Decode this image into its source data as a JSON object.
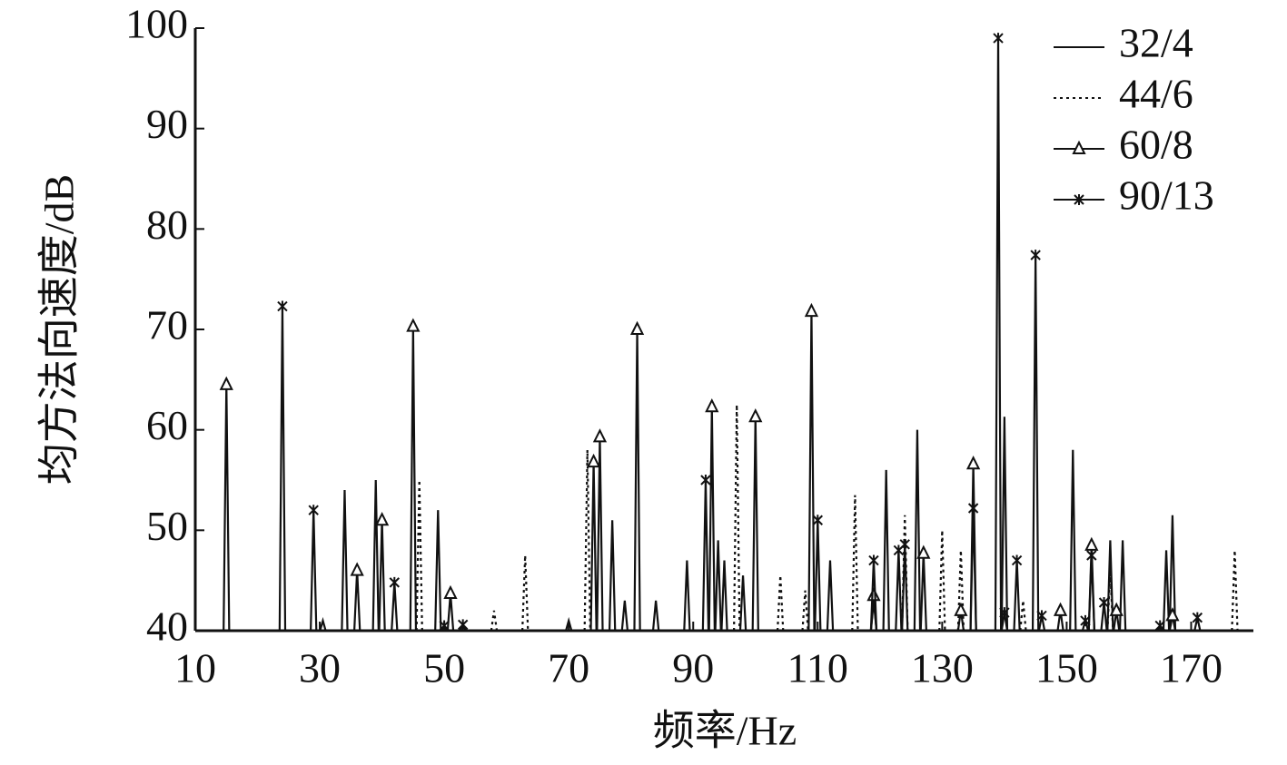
{
  "chart_data": {
    "type": "line",
    "x_label": "频率/Hz",
    "y_label": "均方法向速度/dB",
    "xlim": [
      10,
      180
    ],
    "ylim": [
      40,
      100
    ],
    "xticks": [
      10,
      30,
      50,
      70,
      90,
      110,
      130,
      150,
      170
    ],
    "yticks": [
      40,
      50,
      60,
      70,
      80,
      90,
      100
    ],
    "legend": "upper-right",
    "series": [
      {
        "name": "32/4",
        "color": "#111111",
        "dash": "solid",
        "marker": "none",
        "x": [
          30.5,
          34,
          39,
          49,
          70,
          77,
          79,
          84,
          89,
          94,
          95,
          98,
          112,
          119,
          121,
          126,
          140,
          151,
          157,
          159,
          166,
          167
        ],
        "values": [
          41,
          54,
          55,
          52,
          41,
          51,
          43,
          43,
          47,
          49,
          47,
          45.5,
          47,
          43,
          56,
          60,
          61.3,
          58,
          49,
          49,
          48,
          51.5
        ]
      },
      {
        "name": "44/6",
        "color": "#111111",
        "dash": "dotted",
        "marker": "none",
        "x": [
          46,
          58,
          63,
          73,
          97,
          104,
          108,
          116,
          124,
          130,
          133,
          143,
          157,
          177
        ],
        "values": [
          55,
          42,
          47.5,
          58,
          62.5,
          45.5,
          44,
          53.5,
          51.5,
          50,
          48,
          43,
          46,
          48
        ]
      },
      {
        "name": "60/8",
        "color": "#111111",
        "dash": "solid",
        "marker": "triangle",
        "x": [
          15,
          36,
          40,
          45,
          51,
          74,
          75,
          81,
          93,
          100,
          109,
          119,
          127,
          133,
          135,
          149,
          154,
          158,
          167
        ],
        "values": [
          64.5,
          46,
          51,
          70.3,
          43.7,
          56.8,
          59.3,
          70,
          62.3,
          61.3,
          71.8,
          43.5,
          47.7,
          42,
          56.6,
          42,
          48.5,
          42,
          41.5
        ]
      },
      {
        "name": "90/13",
        "color": "#111111",
        "dash": "solid",
        "marker": "asterisk",
        "x": [
          24,
          29,
          42,
          50,
          53,
          92,
          110,
          119,
          123,
          124,
          135,
          139,
          140,
          142,
          145,
          146,
          153,
          154,
          156,
          165,
          171
        ],
        "values": [
          72.3,
          52,
          44.8,
          40.5,
          40.6,
          55,
          51,
          47,
          48,
          48.6,
          52.2,
          99,
          41.8,
          47,
          77.4,
          41.5,
          41,
          47.5,
          42.8,
          40.5,
          41.3
        ]
      }
    ]
  }
}
